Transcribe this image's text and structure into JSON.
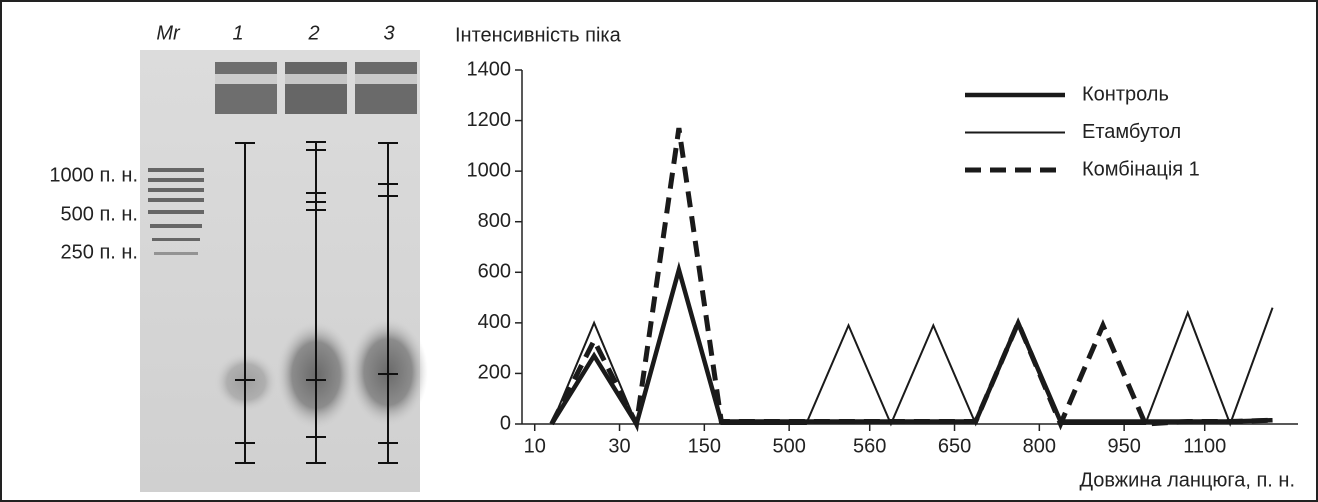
{
  "gel": {
    "lanes": [
      "Mr",
      "1",
      "2",
      "3"
    ],
    "size_labels": [
      "1000 п. н.",
      "500 п. н.",
      "250 п. н."
    ]
  },
  "chart_data": {
    "type": "line",
    "y_label": "Інтенсивність піка",
    "x_label": "Довжина ланцюга, п. н.",
    "x": [
      0,
      1,
      2,
      3,
      4,
      5,
      6,
      7,
      8,
      9,
      10,
      11,
      12,
      13,
      14,
      15,
      16,
      17
    ],
    "xlim": [
      -0.7,
      17.6
    ],
    "xticks": [
      {
        "value": -0.4,
        "label": "10"
      },
      {
        "value": 1.6,
        "label": "30"
      },
      {
        "value": 3.6,
        "label": "150"
      },
      {
        "value": 5.6,
        "label": "500"
      },
      {
        "value": 7.5,
        "label": "560"
      },
      {
        "value": 9.5,
        "label": "650"
      },
      {
        "value": 11.5,
        "label": "800"
      },
      {
        "value": 13.5,
        "label": "950"
      },
      {
        "value": 15.4,
        "label": "1100"
      }
    ],
    "ylim": [
      0,
      1400
    ],
    "yticks": [
      0,
      200,
      400,
      600,
      800,
      1000,
      1200,
      1400
    ],
    "legend": "top-right",
    "series": [
      {
        "name": "Контроль",
        "color": "#1a1a1a",
        "style": "thick",
        "values": [
          0,
          270,
          0,
          610,
          10,
          10,
          10,
          10,
          10,
          10,
          10,
          400,
          10,
          10,
          10,
          10,
          10,
          15
        ]
      },
      {
        "name": "Етамбутол",
        "color": "#1a1a1a",
        "style": "thin",
        "values": [
          0,
          400,
          0,
          600,
          0,
          0,
          0,
          390,
          0,
          390,
          0,
          400,
          0,
          0,
          0,
          440,
          0,
          460
        ]
      },
      {
        "name": "Комбінація 1",
        "color": "#1a1a1a",
        "style": "dashed",
        "values": [
          0,
          330,
          0,
          1170,
          10,
          10,
          10,
          10,
          10,
          10,
          10,
          400,
          0,
          390,
          0,
          10,
          10,
          15
        ]
      }
    ]
  }
}
